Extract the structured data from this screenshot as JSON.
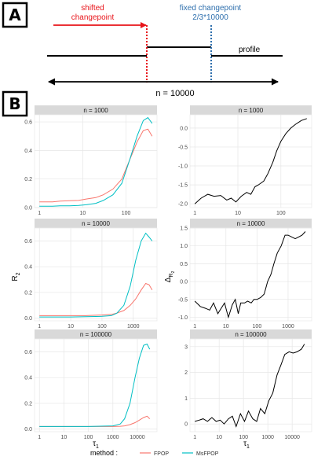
{
  "panel_a": {
    "label": "A",
    "shifted_label": [
      "shifted",
      "changepoint"
    ],
    "fixed_label": [
      "fixed changepoint",
      "2/3*10000"
    ],
    "profile_label": "profile",
    "n_label": "n = 10000",
    "colors": {
      "shifted": "#e8141a",
      "fixed": "#2e6fad"
    }
  },
  "panel_b": {
    "label": "B",
    "left_ylabel": "R",
    "left_ylabel_sub": "2",
    "right_ylabel": "Δ",
    "right_ylabel_sub": "R",
    "right_ylabel_subsub": "2",
    "xlabel": "τ",
    "xlabel_sub": "1",
    "legend": {
      "title": "method :",
      "items": [
        {
          "name": "FPOP",
          "color": "#f8766d"
        },
        {
          "name": "MsFPOP",
          "color": "#00bfc4"
        }
      ]
    }
  },
  "chart_data": [
    {
      "type": "line",
      "strip": "n = 1000",
      "ylim": [
        0,
        0.65
      ],
      "xscale": "log",
      "xlim": [
        1,
        400
      ],
      "xticks": [
        {
          "v": 1,
          "t": "1"
        },
        {
          "v": 10,
          "t": "10"
        },
        {
          "v": 100,
          "t": "100"
        }
      ],
      "yticks": [
        {
          "v": 0,
          "t": "0.0"
        },
        {
          "v": 0.2,
          "t": "0.2"
        },
        {
          "v": 0.4,
          "t": "0.4"
        },
        {
          "v": 0.6,
          "t": "0.6"
        }
      ],
      "x": [
        1,
        2,
        3,
        5,
        8,
        12,
        20,
        30,
        50,
        80,
        120,
        180,
        250,
        320,
        400
      ],
      "series": [
        {
          "name": "FPOP",
          "color": "#f8766d",
          "values": [
            0.04,
            0.04,
            0.045,
            0.048,
            0.05,
            0.06,
            0.07,
            0.09,
            0.13,
            0.2,
            0.33,
            0.46,
            0.54,
            0.55,
            0.5
          ]
        },
        {
          "name": "MsFPOP",
          "color": "#00bfc4",
          "values": [
            0.01,
            0.01,
            0.012,
            0.012,
            0.015,
            0.02,
            0.03,
            0.05,
            0.09,
            0.17,
            0.33,
            0.5,
            0.61,
            0.63,
            0.59
          ]
        }
      ]
    },
    {
      "type": "line",
      "strip": "n = 1000",
      "ylim": [
        -2.1,
        0.35
      ],
      "xscale": "log",
      "xlim": [
        1,
        400
      ],
      "xticks": [
        {
          "v": 1,
          "t": "1"
        },
        {
          "v": 10,
          "t": "10"
        },
        {
          "v": 100,
          "t": "100"
        }
      ],
      "yticks": [
        {
          "v": -2,
          "t": "-2.0"
        },
        {
          "v": -1.5,
          "t": "-1.5"
        },
        {
          "v": -1,
          "t": "-1.0"
        },
        {
          "v": -0.5,
          "t": "-0.5"
        },
        {
          "v": 0,
          "t": "0.0"
        }
      ],
      "x": [
        1,
        1.4,
        2,
        2.8,
        4,
        5.5,
        7,
        9,
        12,
        16,
        20,
        25,
        30,
        40,
        50,
        65,
        80,
        100,
        130,
        170,
        220,
        300,
        400
      ],
      "series": [
        {
          "name": "Δ",
          "color": "#000000",
          "values": [
            -2.0,
            -1.85,
            -1.75,
            -1.8,
            -1.78,
            -1.9,
            -1.85,
            -1.95,
            -1.8,
            -1.7,
            -1.75,
            -1.55,
            -1.5,
            -1.4,
            -1.2,
            -0.9,
            -0.6,
            -0.35,
            -0.15,
            0.0,
            0.1,
            0.2,
            0.25
          ]
        }
      ]
    },
    {
      "type": "line",
      "strip": "n = 10000",
      "ylim": [
        -0.02,
        0.7
      ],
      "xscale": "log",
      "xlim": [
        1,
        4000
      ],
      "xticks": [
        {
          "v": 1,
          "t": "1"
        },
        {
          "v": 10,
          "t": "10"
        },
        {
          "v": 100,
          "t": "100"
        },
        {
          "v": 1000,
          "t": "1000"
        }
      ],
      "yticks": [
        {
          "v": 0,
          "t": "0.0"
        },
        {
          "v": 0.2,
          "t": "0.2"
        },
        {
          "v": 0.4,
          "t": "0.4"
        },
        {
          "v": 0.6,
          "t": "0.6"
        }
      ],
      "x": [
        1,
        3,
        10,
        30,
        100,
        200,
        300,
        500,
        800,
        1200,
        1800,
        2500,
        3200,
        4000
      ],
      "series": [
        {
          "name": "FPOP",
          "color": "#f8766d",
          "values": [
            0.02,
            0.02,
            0.02,
            0.02,
            0.025,
            0.03,
            0.04,
            0.06,
            0.1,
            0.15,
            0.22,
            0.27,
            0.26,
            0.22
          ]
        },
        {
          "name": "MsFPOP",
          "color": "#00bfc4",
          "values": [
            0.01,
            0.01,
            0.01,
            0.012,
            0.015,
            0.02,
            0.04,
            0.1,
            0.25,
            0.45,
            0.6,
            0.66,
            0.63,
            0.6
          ]
        }
      ]
    },
    {
      "type": "line",
      "strip": "n = 10000",
      "ylim": [
        -1.1,
        1.5
      ],
      "xscale": "log",
      "xlim": [
        1,
        4000
      ],
      "xticks": [
        {
          "v": 1,
          "t": "1"
        },
        {
          "v": 10,
          "t": "10"
        },
        {
          "v": 100,
          "t": "100"
        },
        {
          "v": 1000,
          "t": "1000"
        }
      ],
      "yticks": [
        {
          "v": -1,
          "t": "-1.0"
        },
        {
          "v": -0.5,
          "t": "-0.5"
        },
        {
          "v": 0,
          "t": "0.0"
        },
        {
          "v": 0.5,
          "t": "0.5"
        },
        {
          "v": 1,
          "t": "1.0"
        },
        {
          "v": 1.5,
          "t": "1.5"
        }
      ],
      "x": [
        1,
        1.5,
        2.2,
        3,
        4,
        5.5,
        7,
        9,
        12,
        16,
        20,
        25,
        30,
        40,
        50,
        65,
        80,
        100,
        130,
        170,
        220,
        280,
        350,
        450,
        600,
        800,
        1000,
        1300,
        1700,
        2200,
        2800,
        3600
      ],
      "series": [
        {
          "name": "Δ",
          "color": "#000000",
          "values": [
            -0.55,
            -0.7,
            -0.75,
            -0.8,
            -0.6,
            -0.9,
            -0.75,
            -0.6,
            -1.0,
            -0.65,
            -0.5,
            -0.9,
            -0.6,
            -0.6,
            -0.55,
            -0.6,
            -0.5,
            -0.5,
            -0.45,
            -0.35,
            0.0,
            0.2,
            0.5,
            0.8,
            1.0,
            1.3,
            1.3,
            1.25,
            1.2,
            1.25,
            1.3,
            1.4
          ]
        }
      ]
    },
    {
      "type": "line",
      "strip": "n = 100000",
      "ylim": [
        -0.02,
        0.7
      ],
      "xscale": "log",
      "xlim": [
        1,
        40000
      ],
      "xticks": [
        {
          "v": 1,
          "t": "1"
        },
        {
          "v": 10,
          "t": "10"
        },
        {
          "v": 100,
          "t": "100"
        },
        {
          "v": 1000,
          "t": "1000"
        },
        {
          "v": 10000,
          "t": "10000"
        }
      ],
      "yticks": [
        {
          "v": 0,
          "t": "0.0"
        },
        {
          "v": 0.2,
          "t": "0.2"
        },
        {
          "v": 0.4,
          "t": "0.4"
        },
        {
          "v": 0.6,
          "t": "0.6"
        }
      ],
      "x": [
        1,
        10,
        100,
        1000,
        2000,
        3000,
        5000,
        8000,
        12000,
        18000,
        25000,
        32000
      ],
      "series": [
        {
          "name": "FPOP",
          "color": "#f8766d",
          "values": [
            0.02,
            0.02,
            0.02,
            0.02,
            0.022,
            0.025,
            0.035,
            0.05,
            0.07,
            0.09,
            0.1,
            0.08
          ]
        },
        {
          "name": "MsFPOP",
          "color": "#00bfc4",
          "values": [
            0.02,
            0.02,
            0.02,
            0.025,
            0.04,
            0.08,
            0.2,
            0.4,
            0.55,
            0.65,
            0.66,
            0.62
          ]
        }
      ]
    },
    {
      "type": "line",
      "strip": "n = 100000",
      "ylim": [
        -0.3,
        3.3
      ],
      "xscale": "log",
      "xlim": [
        1,
        40000
      ],
      "xticks": [
        {
          "v": 1,
          "t": "1"
        },
        {
          "v": 10,
          "t": "10"
        },
        {
          "v": 100,
          "t": "100"
        },
        {
          "v": 1000,
          "t": "1000"
        },
        {
          "v": 10000,
          "t": "10000"
        }
      ],
      "yticks": [
        {
          "v": 0,
          "t": "0"
        },
        {
          "v": 1,
          "t": "1"
        },
        {
          "v": 2,
          "t": "2"
        },
        {
          "v": 3,
          "t": "3"
        }
      ],
      "x": [
        1,
        1.5,
        2.2,
        3.3,
        5,
        7.5,
        11,
        16,
        24,
        35,
        50,
        75,
        110,
        160,
        240,
        350,
        500,
        750,
        1100,
        1600,
        2400,
        3500,
        5000,
        7500,
        11000,
        16000,
        24000,
        32000
      ],
      "series": [
        {
          "name": "Δ",
          "color": "#000000",
          "values": [
            0.1,
            0.15,
            0.2,
            0.1,
            0.25,
            0.1,
            0.15,
            0.0,
            0.2,
            0.3,
            -0.1,
            0.4,
            0.1,
            0.5,
            0.2,
            0.1,
            0.6,
            0.4,
            0.9,
            1.2,
            1.9,
            2.3,
            2.7,
            2.8,
            2.75,
            2.8,
            2.9,
            3.1
          ]
        }
      ]
    }
  ]
}
